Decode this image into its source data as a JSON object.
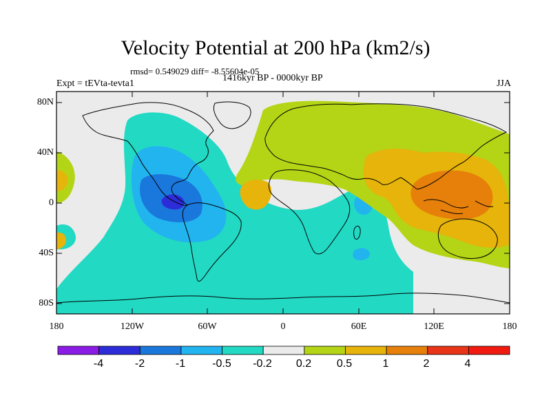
{
  "title": "Velocity Potential at 200 hPa (km2/s)",
  "stats": "rmsd= 0.549029 diff= -8.55604e-05",
  "experiment": "Expt = tEVta-tevta1",
  "period": "1416kyr BP - 0000kyr BP",
  "season": "JJA",
  "lat_labels": [
    "80N",
    "40N",
    "0",
    "40S",
    "80S"
  ],
  "lon_labels": [
    "180",
    "120W",
    "60W",
    "0",
    "60E",
    "120E",
    "180"
  ],
  "colorbar": {
    "labels": [
      "-4",
      "-2",
      "-1",
      "-0.5",
      "-0.2",
      "0.2",
      "0.5",
      "1",
      "2",
      "4"
    ],
    "colors": [
      "#8a1ce6",
      "#2c2cd8",
      "#1a78dc",
      "#22b4ee",
      "#22d9c4",
      "#ebebeb",
      "#b4d416",
      "#e6b40a",
      "#e6800a",
      "#e83418",
      "#f01a10"
    ]
  },
  "map_colors": {
    "background": "#ebebeb",
    "neg_weak": "#22d9c4",
    "neg_mod": "#22b4ee",
    "neg_strong": "#1a78dc",
    "neg_core": "#2c2cd8",
    "pos_weak": "#b4d416",
    "pos_mod": "#e6b40a",
    "pos_strong": "#e6800a",
    "coast": "#000000"
  }
}
